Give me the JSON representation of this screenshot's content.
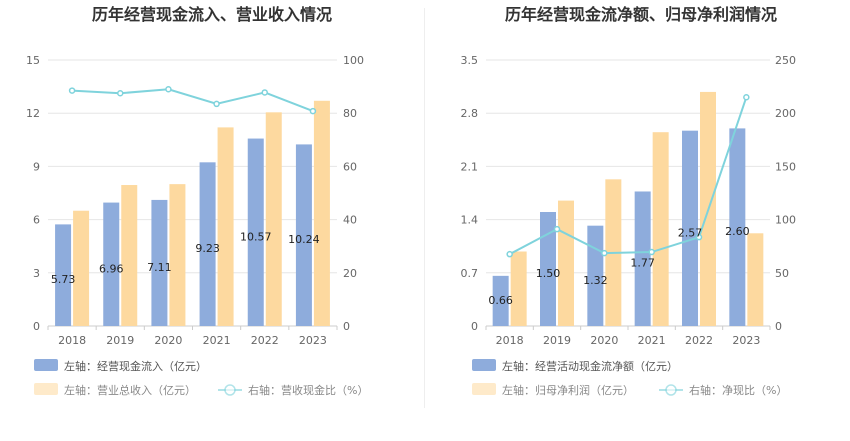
{
  "colors": {
    "blue_bar": "#8eacdc",
    "yellow_bar": "#fdd99f",
    "line": "#7fd3dc",
    "grid": "#e6e6e6",
    "text": "#333333"
  },
  "chart_data": [
    {
      "type": "bar",
      "title": "历年经营现金流入、营业收入情况",
      "categories": [
        "2018",
        "2019",
        "2020",
        "2021",
        "2022",
        "2023"
      ],
      "y_left": {
        "ticks": [
          "0",
          "3",
          "6",
          "9",
          "12",
          "15"
        ],
        "lim": [
          0,
          15
        ]
      },
      "y_right": {
        "ticks": [
          "0",
          "20",
          "40",
          "60",
          "80",
          "100"
        ],
        "lim": [
          0,
          100
        ]
      },
      "series": [
        {
          "name": "左轴：经营现金流入（亿元）",
          "axis": "left",
          "kind": "bar",
          "color": "#8eacdc",
          "values": [
            5.73,
            6.96,
            7.11,
            9.23,
            10.57,
            10.24
          ],
          "labels": [
            "5.73",
            "6.96",
            "7.11",
            "9.23",
            "10.57",
            "10.24"
          ]
        },
        {
          "name": "左轴：营业总收入（亿元）",
          "axis": "left",
          "kind": "bar",
          "color": "#fdd99f",
          "values": [
            6.5,
            7.95,
            8.0,
            11.2,
            12.05,
            12.7
          ]
        },
        {
          "name": "右轴：营收现金比（%）",
          "axis": "right",
          "kind": "line",
          "color": "#7fd3dc",
          "values": [
            88.5,
            87.5,
            89.0,
            83.5,
            87.8,
            80.8
          ]
        }
      ],
      "grid": true,
      "legend_position": "bottom"
    },
    {
      "type": "bar",
      "title": "历年经营现金流净额、归母净利润情况",
      "categories": [
        "2018",
        "2019",
        "2020",
        "2021",
        "2022",
        "2023"
      ],
      "y_left": {
        "ticks": [
          "0",
          "0.7",
          "1.4",
          "2.1",
          "2.8",
          "3.5"
        ],
        "lim": [
          0,
          3.5
        ]
      },
      "y_right": {
        "ticks": [
          "0",
          "50",
          "100",
          "150",
          "200",
          "250"
        ],
        "lim": [
          0,
          250
        ]
      },
      "series": [
        {
          "name": "左轴：经营活动现金流净额（亿元）",
          "axis": "left",
          "kind": "bar",
          "color": "#8eacdc",
          "values": [
            0.66,
            1.5,
            1.32,
            1.77,
            2.57,
            2.6
          ],
          "labels": [
            "0.66",
            "1.50",
            "1.32",
            "1.77",
            "2.57",
            "2.60"
          ]
        },
        {
          "name": "左轴：归母净利润（亿元）",
          "axis": "left",
          "kind": "bar",
          "color": "#fdd99f",
          "values": [
            0.98,
            1.65,
            1.93,
            2.55,
            3.08,
            1.22
          ]
        },
        {
          "name": "右轴：净现比（%）",
          "axis": "right",
          "kind": "line",
          "color": "#7fd3dc",
          "values": [
            67.5,
            91.0,
            68.5,
            69.5,
            83.5,
            215.0
          ]
        }
      ],
      "grid": true,
      "legend_position": "bottom"
    }
  ]
}
